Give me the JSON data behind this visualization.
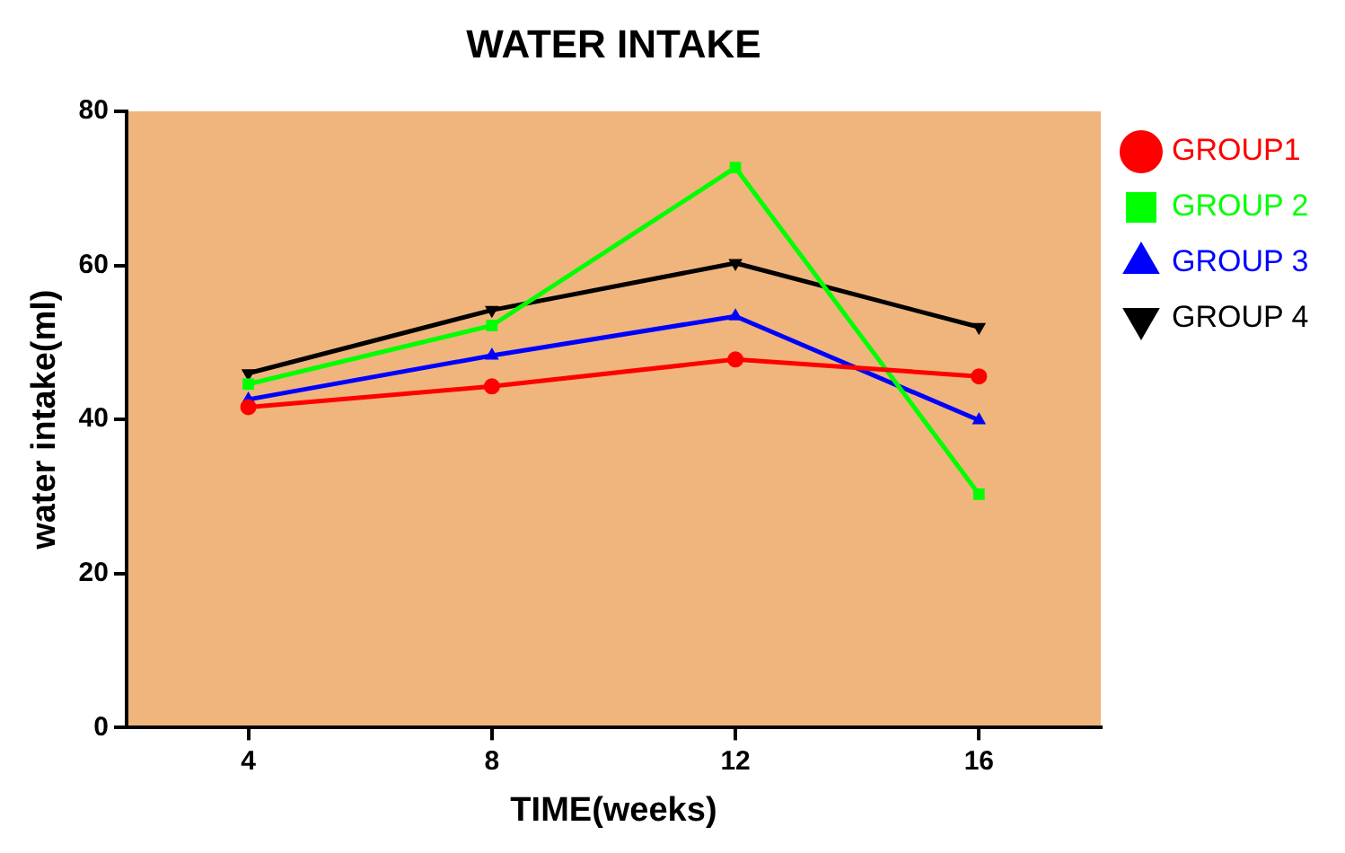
{
  "chart_data": {
    "type": "line",
    "title": "WATER INTAKE",
    "xlabel": "TIME(weeks)",
    "ylabel": "water intake(ml)",
    "categories": [
      "4",
      "8",
      "12",
      "16"
    ],
    "ylim": [
      0,
      80
    ],
    "yticks": [
      0,
      20,
      40,
      60,
      80
    ],
    "grid": false,
    "legend": "right",
    "line_style": "solid",
    "series": [
      {
        "name": "GROUP1",
        "color": "#ff0000",
        "marker": "circle",
        "values": [
          41.6,
          44.3,
          47.8,
          45.6
        ]
      },
      {
        "name": "GROUP 2",
        "color": "#00ff00",
        "marker": "square",
        "values": [
          44.6,
          52.2,
          72.7,
          30.3
        ]
      },
      {
        "name": "GROUP 3",
        "color": "#0000ff",
        "marker": "triangle",
        "values": [
          42.6,
          48.3,
          53.4,
          39.9
        ]
      },
      {
        "name": "GROUP 4",
        "color": "#000000",
        "marker": "triangle-down",
        "values": [
          46,
          54.2,
          60.3,
          52
        ]
      }
    ]
  }
}
